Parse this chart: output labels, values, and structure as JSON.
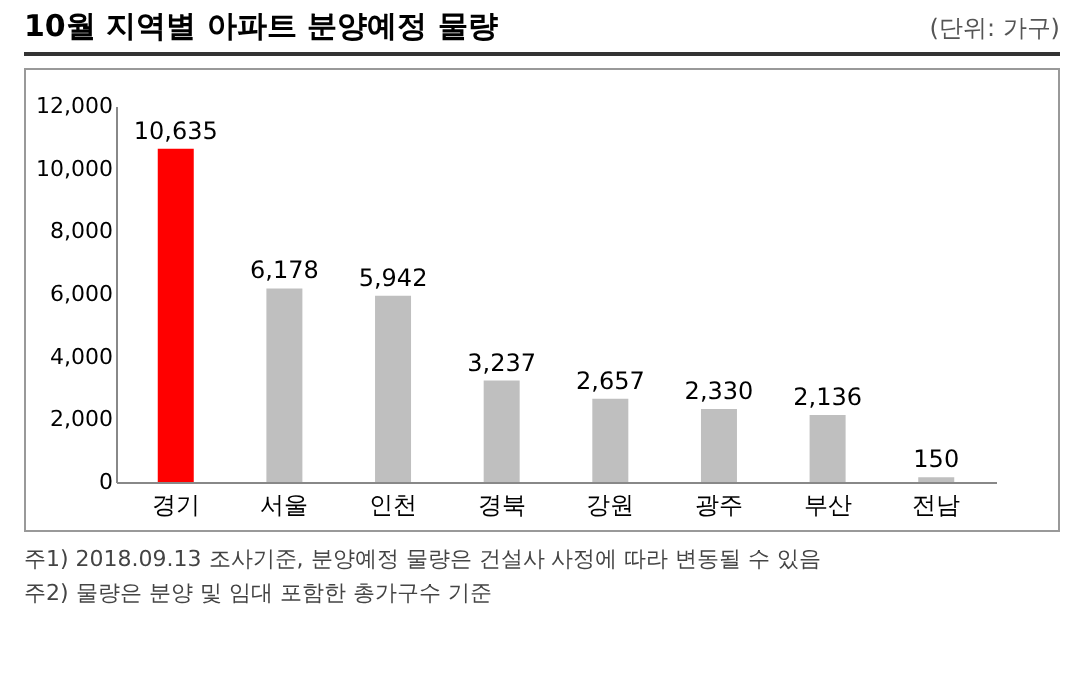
{
  "chart_data": {
    "type": "bar",
    "title": "10월 지역별 아파트 분양예정 물량",
    "subtitle": "(단위: 가구)",
    "categories": [
      "경기",
      "서울",
      "인천",
      "경북",
      "강원",
      "광주",
      "부산",
      "전남"
    ],
    "values": [
      10635,
      6178,
      5942,
      3237,
      2657,
      2330,
      2136,
      150
    ],
    "colors": [
      "#ff0000",
      "#bfbfbf",
      "#bfbfbf",
      "#bfbfbf",
      "#bfbfbf",
      "#bfbfbf",
      "#bfbfbf",
      "#bfbfbf"
    ],
    "value_labels": [
      "10,635",
      "6,178",
      "5,942",
      "3,237",
      "2,657",
      "2,330",
      "2,136",
      "150"
    ],
    "ylim": [
      0,
      12000
    ],
    "yticks": [
      0,
      {
        "value": 2000,
        "label": "2,000"
      },
      {
        "value": 4000,
        "label": "4,000"
      },
      {
        "value": 6000,
        "label": "6,000"
      },
      {
        "value": 8000,
        "label": "8,000"
      },
      {
        "value": 10000,
        "label": "10,000"
      },
      {
        "value": 12000,
        "label": "12,000"
      }
    ],
    "grid": false,
    "annotations": [
      "주1) 2018.09.13 조사기준, 분양예정 물량은 건설사 사정에 따라 변동될 수 있음",
      "주2) 물량은 분양 및 임대 포함한 총가구수 기준"
    ]
  }
}
